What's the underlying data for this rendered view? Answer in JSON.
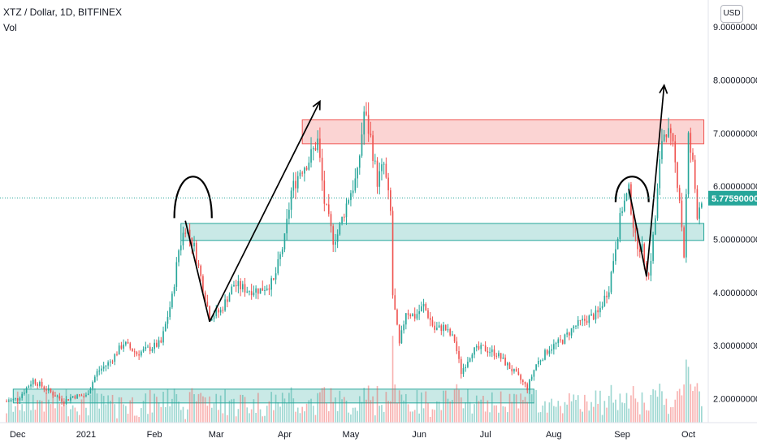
{
  "header": {
    "title": "XTZ / Dollar, 1D, BITFINEX",
    "volume_label": "Vol",
    "currency": "USD"
  },
  "chart_data": {
    "type": "candlestick",
    "symbol": "XTZ / Dollar",
    "interval": "1D",
    "exchange": "BITFINEX",
    "last_price": "5.77590000",
    "y_ticks": [
      "9.00000000",
      "8.00000000",
      "7.00000000",
      "6.00000000",
      "5.00000000",
      "4.00000000",
      "3.00000000",
      "2.00000000"
    ],
    "x_ticks": [
      "Dec",
      "2021",
      "Feb",
      "Mar",
      "Apr",
      "May",
      "Jun",
      "Jul",
      "Aug",
      "Sep",
      "Oct"
    ],
    "ylim": [
      1.55,
      9.2
    ],
    "colors": {
      "up": "#26a69a",
      "down": "#ef5350",
      "last_price": "#26a69a"
    },
    "ohlc_anchors": [
      [
        "2020-11-26",
        1.95
      ],
      [
        "2020-12-01",
        2.0
      ],
      [
        "2020-12-08",
        2.35
      ],
      [
        "2020-12-15",
        2.15
      ],
      [
        "2020-12-22",
        1.95
      ],
      [
        "2020-12-26",
        2.05
      ],
      [
        "2021-01-01",
        2.05
      ],
      [
        "2021-01-06",
        2.5
      ],
      [
        "2021-01-12",
        2.7
      ],
      [
        "2021-01-18",
        3.05
      ],
      [
        "2021-01-24",
        2.85
      ],
      [
        "2021-01-30",
        2.95
      ],
      [
        "2021-02-04",
        3.05
      ],
      [
        "2021-02-09",
        3.9
      ],
      [
        "2021-02-12",
        4.8
      ],
      [
        "2021-02-15",
        5.25
      ],
      [
        "2021-02-19",
        4.85
      ],
      [
        "2021-02-23",
        4.1
      ],
      [
        "2021-02-26",
        3.55
      ],
      [
        "2021-03-03",
        3.65
      ],
      [
        "2021-03-09",
        4.15
      ],
      [
        "2021-03-15",
        4.05
      ],
      [
        "2021-03-21",
        4.05
      ],
      [
        "2021-03-27",
        4.2
      ],
      [
        "2021-04-01",
        5.0
      ],
      [
        "2021-04-04",
        5.9
      ],
      [
        "2021-04-08",
        6.3
      ],
      [
        "2021-04-12",
        6.5
      ],
      [
        "2021-04-16",
        6.85
      ],
      [
        "2021-04-19",
        5.7
      ],
      [
        "2021-04-23",
        5.0
      ],
      [
        "2021-04-25",
        5.1
      ],
      [
        "2021-04-30",
        5.8
      ],
      [
        "2021-05-04",
        6.2
      ],
      [
        "2021-05-07",
        7.4
      ],
      [
        "2021-05-10",
        6.9
      ],
      [
        "2021-05-13",
        6.1
      ],
      [
        "2021-05-16",
        6.4
      ],
      [
        "2021-05-19",
        5.5
      ],
      [
        "2021-05-20",
        3.95
      ],
      [
        "2021-05-23",
        3.0
      ],
      [
        "2021-05-26",
        3.65
      ],
      [
        "2021-05-30",
        3.55
      ],
      [
        "2021-06-03",
        3.75
      ],
      [
        "2021-06-08",
        3.3
      ],
      [
        "2021-06-12",
        3.35
      ],
      [
        "2021-06-17",
        3.1
      ],
      [
        "2021-06-20",
        2.5
      ],
      [
        "2021-06-25",
        2.9
      ],
      [
        "2021-06-30",
        2.95
      ],
      [
        "2021-07-06",
        2.85
      ],
      [
        "2021-07-14",
        2.5
      ],
      [
        "2021-07-20",
        2.2
      ],
      [
        "2021-07-24",
        2.65
      ],
      [
        "2021-07-30",
        2.95
      ],
      [
        "2021-08-05",
        3.1
      ],
      [
        "2021-08-10",
        3.35
      ],
      [
        "2021-08-16",
        3.5
      ],
      [
        "2021-08-21",
        3.6
      ],
      [
        "2021-08-26",
        4.1
      ],
      [
        "2021-08-29",
        4.9
      ],
      [
        "2021-09-01",
        5.6
      ],
      [
        "2021-09-04",
        5.9
      ],
      [
        "2021-09-07",
        5.0
      ],
      [
        "2021-09-10",
        4.8
      ],
      [
        "2021-09-13",
        4.3
      ],
      [
        "2021-09-16",
        5.4
      ],
      [
        "2021-09-19",
        6.9
      ],
      [
        "2021-09-21",
        7.1
      ],
      [
        "2021-09-24",
        6.7
      ],
      [
        "2021-09-27",
        5.8
      ],
      [
        "2021-09-29",
        4.7
      ],
      [
        "2021-10-01",
        6.9
      ],
      [
        "2021-10-03",
        6.4
      ],
      [
        "2021-10-05",
        5.5
      ],
      [
        "2021-10-07",
        5.78
      ]
    ],
    "zones": [
      {
        "name": "resistance-zone",
        "color": "#ef5350",
        "start": "2021-04-09",
        "end": "2021-10-08",
        "low": 6.8,
        "high": 7.25
      },
      {
        "name": "support-zone-upper",
        "color": "#26a69a",
        "start": "2021-02-13",
        "end": "2021-10-08",
        "low": 4.98,
        "high": 5.3
      },
      {
        "name": "support-zone-lower",
        "color": "#26a69a",
        "start": "2020-11-29",
        "end": "2021-07-23",
        "low": 1.92,
        "high": 2.18
      }
    ],
    "drawings": [
      {
        "name": "arc-left",
        "kind": "arc",
        "start": "2021-02-10",
        "end": "2021-02-27",
        "base": 5.4,
        "top": 6.35
      },
      {
        "name": "arc-right",
        "kind": "arc",
        "start": "2021-08-29",
        "end": "2021-09-13",
        "base": 5.7,
        "top": 6.25
      },
      {
        "name": "trend-down-left",
        "kind": "line",
        "points": [
          [
            "2021-02-15",
            5.35
          ],
          [
            "2021-02-26",
            3.45
          ]
        ]
      },
      {
        "name": "trend-up-arrow-left",
        "kind": "arrow",
        "points": [
          [
            "2021-02-26",
            3.45
          ],
          [
            "2021-04-17",
            7.6
          ]
        ]
      },
      {
        "name": "trend-down-right",
        "kind": "line",
        "points": [
          [
            "2021-09-04",
            5.95
          ],
          [
            "2021-09-12",
            4.3
          ]
        ]
      },
      {
        "name": "trend-up-arrow-right",
        "kind": "arrow",
        "points": [
          [
            "2021-09-12",
            4.3
          ],
          [
            "2021-09-20",
            7.9
          ]
        ]
      }
    ]
  }
}
